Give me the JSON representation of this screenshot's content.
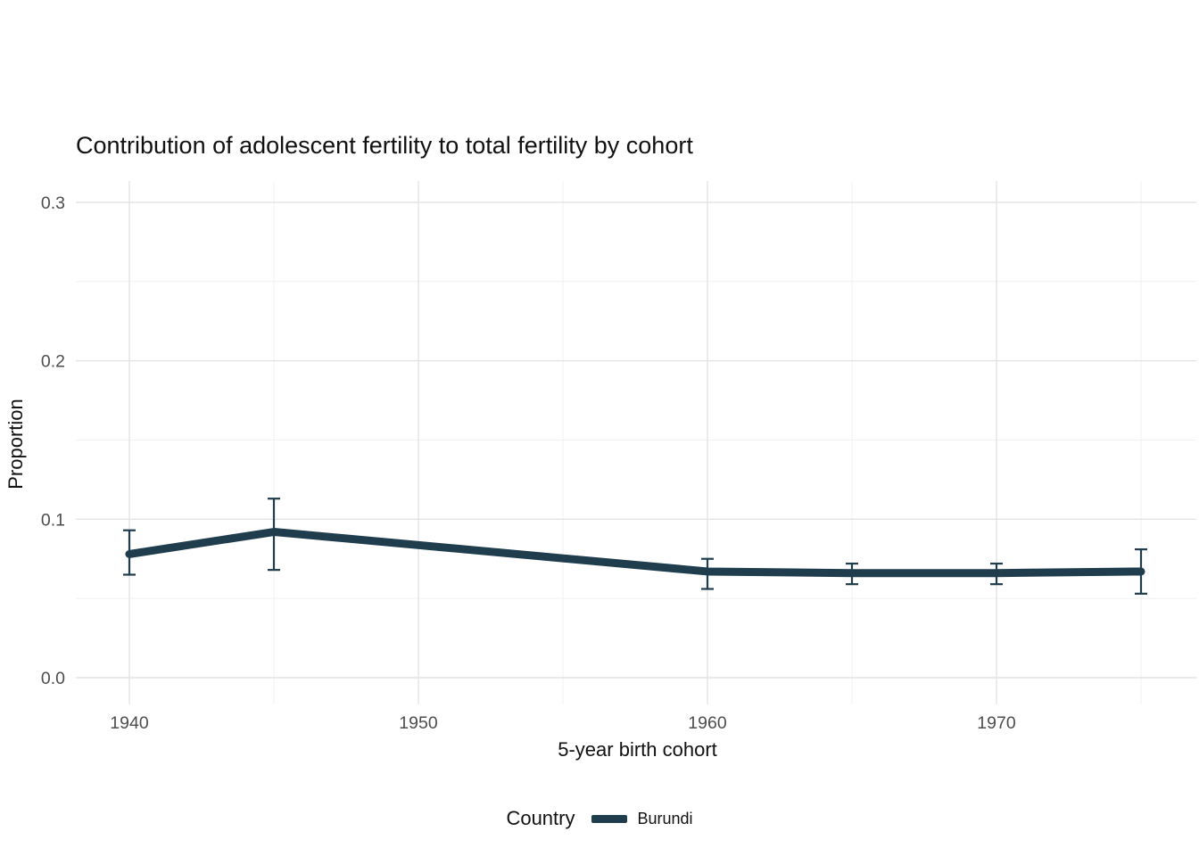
{
  "title": "Contribution of adolescent fertility to total fertility by cohort",
  "axes": {
    "x_label": "5-year birth cohort",
    "y_label": "Proportion",
    "x_tick_labels": [
      "1940",
      "1950",
      "1960",
      "1970"
    ],
    "y_tick_labels": [
      "0.0",
      "0.1",
      "0.2",
      "0.3"
    ]
  },
  "legend": {
    "title": "Country",
    "entries": [
      {
        "label": "Burundi",
        "color": "#1f3d4c"
      }
    ]
  },
  "chart_data": {
    "type": "line",
    "title": "Contribution of adolescent fertility to total fertility by cohort",
    "xlabel": "5-year birth cohort",
    "ylabel": "Proportion",
    "xlim": [
      1938,
      1977.2
    ],
    "ylim": [
      -0.015,
      0.315
    ],
    "grid": true,
    "legend_position": "bottom",
    "x_major_ticks": [
      1940,
      1950,
      1960,
      1970
    ],
    "x_minor_gridlines": [
      1945,
      1955,
      1965,
      1975
    ],
    "y_major_ticks": [
      0.0,
      0.1,
      0.2,
      0.3
    ],
    "y_minor_gridlines": [
      0.05,
      0.15,
      0.25
    ],
    "series": [
      {
        "name": "Burundi",
        "color": "#1f3d4c",
        "points": [
          {
            "x": 1940,
            "y": 0.078,
            "ymin": 0.065,
            "ymax": 0.093
          },
          {
            "x": 1945,
            "y": 0.092,
            "ymin": 0.068,
            "ymax": 0.113
          },
          {
            "x": 1960,
            "y": 0.067,
            "ymin": 0.056,
            "ymax": 0.075
          },
          {
            "x": 1965,
            "y": 0.066,
            "ymin": 0.059,
            "ymax": 0.072
          },
          {
            "x": 1970,
            "y": 0.066,
            "ymin": 0.059,
            "ymax": 0.072
          },
          {
            "x": 1975,
            "y": 0.067,
            "ymin": 0.053,
            "ymax": 0.081
          }
        ]
      }
    ]
  }
}
